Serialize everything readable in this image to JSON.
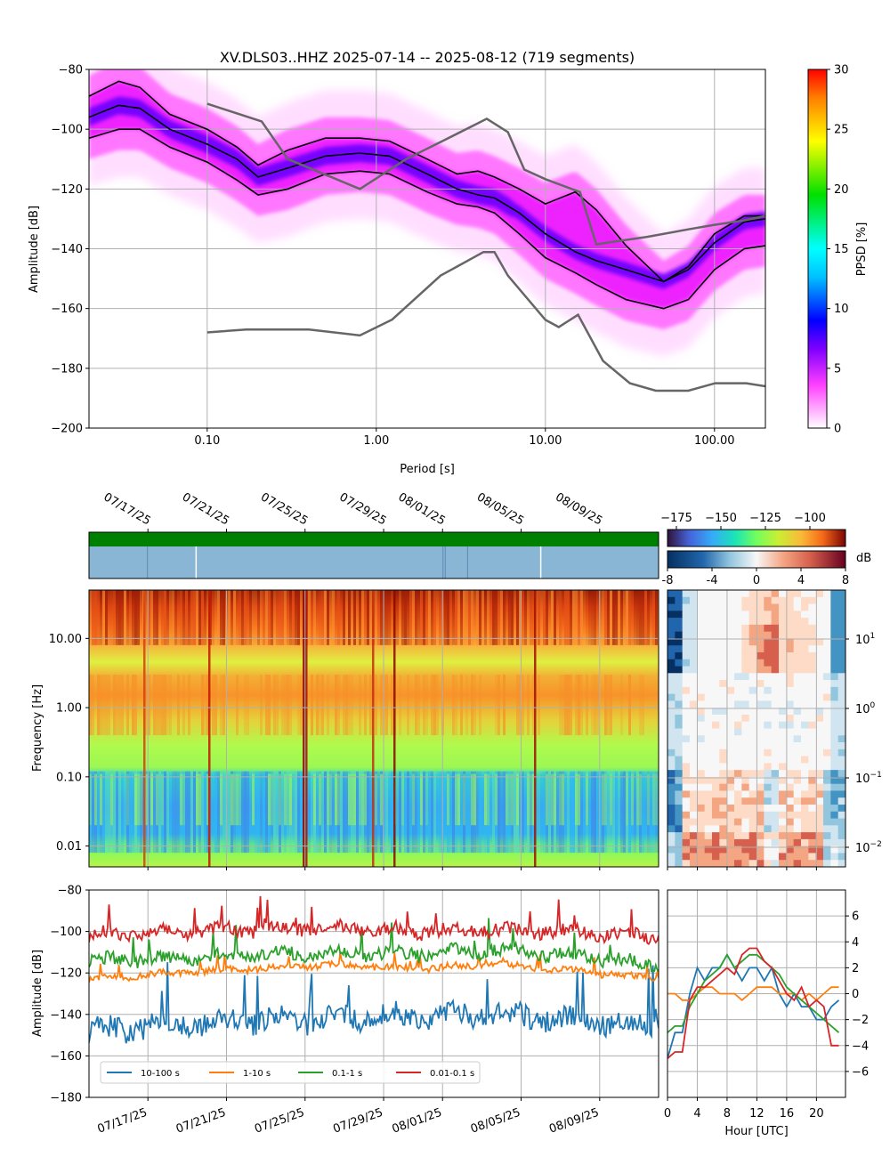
{
  "chart_data": [
    {
      "type": "heatmap",
      "title": "XV.DLS03..HHZ   2025-07-14 -- 2025-08-12  (719 segments)",
      "xlabel": "Period [s]",
      "ylabel": "Amplitude [dB]",
      "x_scale": "log",
      "xlim": [
        0.02,
        200
      ],
      "ylim": [
        -200,
        -80
      ],
      "xtick_labels": [
        "0.10",
        "1.00",
        "10.00",
        "100.00"
      ],
      "xtick_values": [
        0.1,
        1,
        10,
        100
      ],
      "ytick_values": [
        -200,
        -180,
        -160,
        -140,
        -120,
        -100,
        -80
      ],
      "ytick_labels": [
        "−200",
        "−180",
        "−160",
        "−140",
        "−120",
        "−100",
        "−80"
      ],
      "grid": true,
      "colorbar": {
        "label": "PPSD [%]",
        "range": [
          0,
          30
        ],
        "ticks": [
          0,
          5,
          10,
          15,
          20,
          25,
          30
        ],
        "tick_labels": [
          "0",
          "5",
          "10",
          "15",
          "20",
          "25",
          "30"
        ],
        "colormap": "pqlx"
      },
      "percentile_curves": [
        {
          "x": [
            0.02,
            0.03,
            0.04,
            0.06,
            0.1,
            0.15,
            0.2,
            0.3,
            0.5,
            0.8,
            1.2,
            2,
            3,
            4,
            5,
            7,
            10,
            15,
            20,
            30,
            50,
            70,
            100,
            150,
            200
          ],
          "y": [
            -89,
            -84,
            -86,
            -95,
            -100,
            -106,
            -112,
            -107,
            -103,
            -103,
            -104,
            -110,
            -115,
            -114,
            -116,
            -120,
            -125,
            -121,
            -127,
            -139,
            -151,
            -146,
            -135,
            -129,
            -129
          ]
        },
        {
          "x": [
            0.02,
            0.03,
            0.04,
            0.06,
            0.1,
            0.15,
            0.2,
            0.3,
            0.5,
            0.8,
            1.2,
            2,
            3,
            4,
            5,
            7,
            10,
            15,
            20,
            30,
            50,
            70,
            100,
            150,
            200
          ],
          "y": [
            -96,
            -92,
            -93,
            -100,
            -105,
            -110,
            -116,
            -113,
            -109,
            -108,
            -109,
            -115,
            -120,
            -122,
            -123,
            -128,
            -135,
            -141,
            -144,
            -147,
            -151,
            -147,
            -138,
            -131,
            -130
          ]
        },
        {
          "x": [
            0.02,
            0.03,
            0.04,
            0.06,
            0.1,
            0.15,
            0.2,
            0.3,
            0.5,
            0.8,
            1.2,
            2,
            3,
            4,
            5,
            7,
            10,
            15,
            20,
            30,
            50,
            70,
            100,
            150,
            200
          ],
          "y": [
            -103,
            -100,
            -100,
            -106,
            -111,
            -117,
            -122,
            -120,
            -115,
            -114,
            -115,
            -121,
            -125,
            -126,
            -128,
            -135,
            -143,
            -148,
            -152,
            -157,
            -160,
            -157,
            -147,
            -140,
            -139
          ]
        }
      ],
      "noise_models": [
        {
          "x": [
            0.1,
            0.21,
            0.3,
            0.8,
            1.5,
            2.5,
            4,
            4.5,
            6,
            7.5,
            10,
            16,
            20,
            40,
            70,
            100,
            150,
            200
          ],
          "y": [
            -91.5,
            -97.4,
            -110,
            -120,
            -110,
            -103.8,
            -98,
            -96.5,
            -101,
            -113.5,
            -116.7,
            -121,
            -138.5,
            -136,
            -133.5,
            -132,
            -130.5,
            -129
          ]
        },
        {
          "x": [
            0.1,
            0.17,
            0.4,
            0.8,
            1.24,
            2.4,
            4.3,
            5,
            6,
            10,
            12,
            15.6,
            21.9,
            31.6,
            45,
            70,
            101,
            154,
            200
          ],
          "y": [
            -168,
            -167,
            -167,
            -169,
            -163.7,
            -149,
            -141.1,
            -141.1,
            -149,
            -163.8,
            -166.2,
            -162.1,
            -177.5,
            -185,
            -187.5,
            -187.5,
            -185,
            -185,
            -186
          ]
        }
      ]
    },
    {
      "type": "heatmap",
      "ylabel": "Frequency [Hz]",
      "y_scale": "log",
      "ylim": [
        0.005,
        50
      ],
      "ytick_labels": [
        "0.01",
        "0.10",
        "1.00",
        "10.00"
      ],
      "date_labels": [
        "07/17/25",
        "07/21/25",
        "07/25/25",
        "07/29/25",
        "08/01/25",
        "08/05/25",
        "08/09/25"
      ],
      "date_values": [
        "2025-07-17",
        "2025-07-21",
        "2025-07-25",
        "2025-07-29",
        "2025-08-01",
        "2025-08-05",
        "2025-08-09"
      ],
      "xlim": [
        "2025-07-14",
        "2025-08-12"
      ],
      "colorbar": {
        "range": [
          -180,
          -80
        ],
        "ticks": [
          -175,
          -150,
          -125,
          -100
        ],
        "tick_labels": [
          "−175",
          "−150",
          "−125",
          "−100"
        ]
      },
      "data_gaps": [
        "2025-07-17",
        "2025-07-19",
        "2025-08-01",
        "2025-08-01",
        "2025-08-02",
        "2025-08-06"
      ]
    },
    {
      "type": "heatmap",
      "xlabel": "Hour [UTC]",
      "y_scale": "log",
      "ytick_labels": [
        "10",
        "10",
        "10",
        "10"
      ],
      "ytick_exponents": [
        "1",
        "0",
        "−1",
        "−2"
      ],
      "colorbar": {
        "label": "dB",
        "range": [
          -8,
          8
        ],
        "ticks": [
          -8,
          -4,
          0,
          4,
          8
        ],
        "tick_labels": [
          "-8",
          "-4",
          "0",
          "4",
          "8"
        ]
      }
    },
    {
      "type": "line",
      "ylabel": "Amplitude [dB]",
      "ylim": [
        -180,
        -80
      ],
      "ytick_labels": [
        "−180",
        "−160",
        "−140",
        "−120",
        "−100",
        "−80"
      ],
      "date_labels": [
        "07/17/25",
        "07/21/25",
        "07/25/25",
        "07/29/25",
        "08/01/25",
        "08/05/25",
        "08/09/25"
      ],
      "legend_position": "lower-left",
      "series": [
        {
          "name": "10-100 s",
          "color": "#1f77b4",
          "mean": -143,
          "spread": 7,
          "trend": [
            -148,
            -145,
            -143,
            -142,
            -141,
            -140,
            -143,
            -145
          ]
        },
        {
          "name": "1-10 s",
          "color": "#ff7f0e",
          "mean": -119,
          "spread": 2,
          "trend": [
            -123,
            -120,
            -118,
            -116,
            -118,
            -116,
            -119,
            -123
          ]
        },
        {
          "name": "0.1-1 s",
          "color": "#2ca02c",
          "mean": -112,
          "spread": 4,
          "trend": [
            -114,
            -113,
            -111,
            -110,
            -111,
            -109,
            -112,
            -116
          ]
        },
        {
          "name": "0.01-0.1 s",
          "color": "#d62728",
          "mean": -100,
          "spread": 4,
          "trend": [
            -102,
            -100,
            -99,
            -98,
            -100,
            -99,
            -100,
            -103
          ]
        }
      ]
    },
    {
      "type": "line",
      "xlabel": "Hour [UTC]",
      "x": [
        0,
        1,
        2,
        3,
        4,
        5,
        6,
        7,
        8,
        9,
        10,
        11,
        12,
        13,
        14,
        15,
        16,
        17,
        18,
        19,
        20,
        21,
        22,
        23
      ],
      "xtick_labels": [
        "0",
        "4",
        "8",
        "12",
        "16",
        "20"
      ],
      "ytick_labels": [
        "−6",
        "−4",
        "−2",
        "0",
        "2",
        "4",
        "6"
      ],
      "ylim": [
        -8,
        8
      ],
      "series": [
        {
          "color": "#1f77b4",
          "values": [
            -5,
            -3,
            -3,
            0,
            2,
            1,
            2,
            2,
            3,
            2,
            1,
            2,
            2,
            1,
            2,
            0,
            -1,
            0,
            -1,
            -1,
            -2,
            -2,
            -1,
            -0.5
          ]
        },
        {
          "color": "#ff7f0e",
          "values": [
            0,
            0,
            -0.5,
            -0.5,
            0,
            0.5,
            0.5,
            0,
            0,
            0,
            -0.5,
            0,
            0.5,
            0.5,
            0.5,
            0,
            0,
            0,
            -0.5,
            0,
            -0.5,
            0,
            0.5,
            0.5
          ]
        },
        {
          "color": "#2ca02c",
          "values": [
            -3,
            -2.5,
            -2.5,
            -1,
            0,
            1,
            1.5,
            2,
            3,
            2,
            2.5,
            3,
            3,
            2.5,
            2,
            1.5,
            0.5,
            0,
            -0.5,
            -1,
            -1.5,
            -2,
            -2.5,
            -3
          ]
        },
        {
          "color": "#d62728",
          "values": [
            -5,
            -4.5,
            -4.5,
            -0.5,
            0.5,
            0.5,
            1,
            1.5,
            2,
            1.5,
            3,
            3.5,
            3.5,
            2.5,
            2,
            1,
            0,
            -0.5,
            0.5,
            -1,
            -0.5,
            -1,
            -4,
            -4
          ]
        }
      ]
    }
  ]
}
